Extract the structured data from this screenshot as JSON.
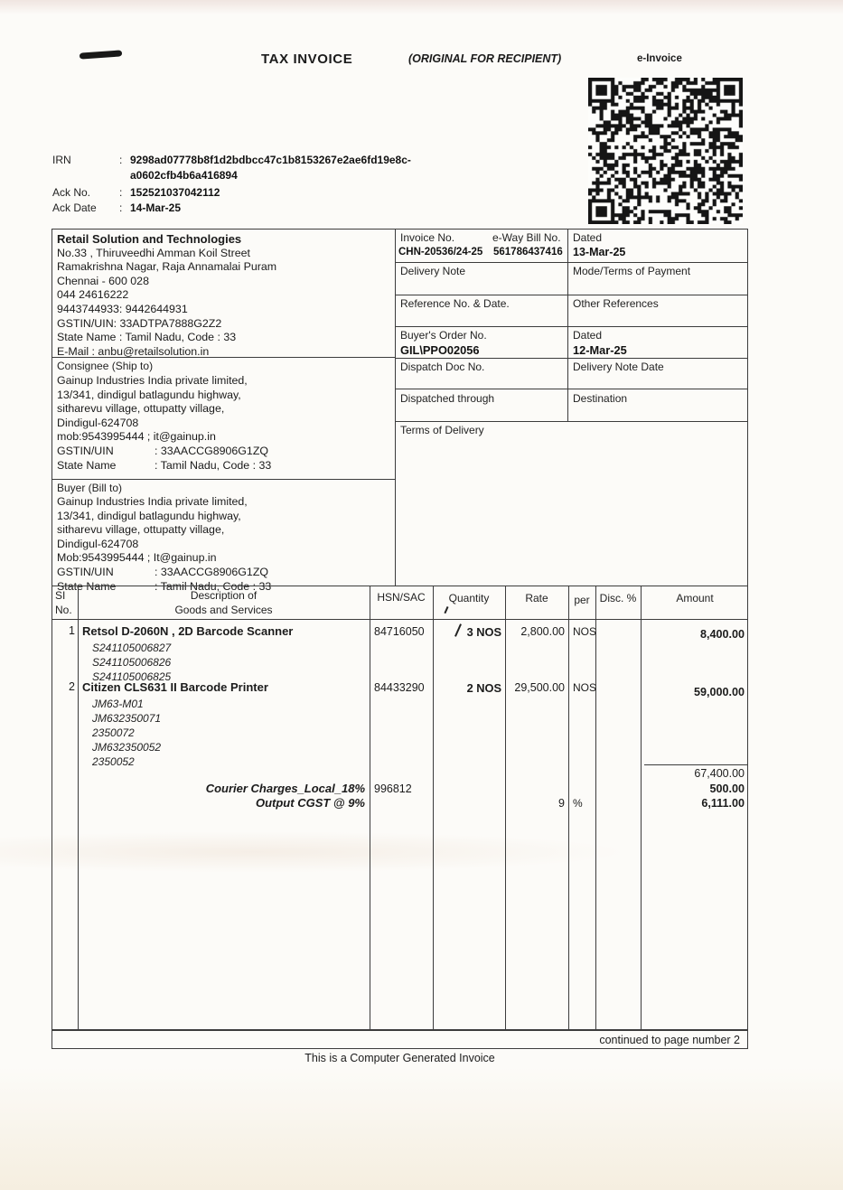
{
  "header": {
    "title": "TAX INVOICE",
    "copy_type": "(ORIGINAL FOR RECIPIENT)",
    "einvoice_label": "e-Invoice"
  },
  "irn": {
    "label": "IRN",
    "sep": ":",
    "value_line1": "9298ad07778b8f1d2bdbcc47c1b8153267e2ae6fd19e8c-",
    "value_line2": "a0602cfb4b6a416894",
    "ack_no_label": "Ack No.",
    "ack_no": "152521037042112",
    "ack_date_label": "Ack Date",
    "ack_date": "14-Mar-25"
  },
  "seller": {
    "name": "Retail Solution and Technologies",
    "lines": [
      "No.33 , Thiruveedhi Amman Koil Street",
      "Ramakrishna Nagar, Raja Annamalai Puram",
      "Chennai - 600 028",
      "044 24616222",
      "9443744933: 9442644931",
      "GSTIN/UIN: 33ADTPA7888G2Z2",
      "State Name :  Tamil Nadu, Code : 33",
      "E-Mail : anbu@retailsolution.in"
    ]
  },
  "consignee": {
    "section_label": "Consignee (Ship to)",
    "name": "Gainup Industries India private limited,",
    "address": [
      "13/341, dindigul batlagundu highway,",
      "sitharevu village, ottupatty village,",
      "Dindigul-624708"
    ],
    "contact": "mob:9543995444 ; it@gainup.in",
    "gstin_label": "GSTIN/UIN",
    "gstin": ": 33AACCG8906G1ZQ",
    "state_label": "State Name",
    "state": ": Tamil Nadu, Code : 33"
  },
  "buyer": {
    "section_label": "Buyer (Bill to)",
    "name": "Gainup Industries India private limited,",
    "address": [
      "13/341, dindigul batlagundu highway,",
      "sitharevu village, ottupatty village,",
      "Dindigul-624708"
    ],
    "contact": "Mob:9543995444 ; It@gainup.in",
    "gstin_label": "GSTIN/UIN",
    "gstin": ": 33AACCG8906G1ZQ",
    "state_label": "State Name",
    "state": ": Tamil Nadu, Code : 33"
  },
  "invoice_details": {
    "invoice_no_label": "Invoice No.",
    "invoice_no": "CHN-20536/24-25",
    "eway_bill_label": "e-Way Bill No.",
    "eway_bill_no": "561786437416",
    "dated_label": "Dated",
    "dated": "13-Mar-25",
    "delivery_note_label": "Delivery Note",
    "mode_terms_label": "Mode/Terms of Payment",
    "reference_label": "Reference No. & Date.",
    "other_refs_label": "Other References",
    "buyers_order_label": "Buyer's Order No.",
    "buyers_order_no": "GIL\\PPO02056",
    "order_dated_label": "Dated",
    "order_dated": "12-Mar-25",
    "dispatch_doc_label": "Dispatch Doc No.",
    "delivery_note_date_label": "Delivery Note Date",
    "dispatched_through_label": "Dispatched through",
    "destination_label": "Destination",
    "terms_label": "Terms of Delivery"
  },
  "table": {
    "headers": {
      "sl_line1": "SI",
      "sl_line2": "No.",
      "desc_line1": "Description of",
      "desc_line2": "Goods and Services",
      "hsn": "HSN/SAC",
      "qty": "Quantity",
      "rate": "Rate",
      "per": "per",
      "disc": "Disc. %",
      "amount": "Amount"
    },
    "items": [
      {
        "sl": "1",
        "description": "Retsol D-2060N , 2D Barcode Scanner",
        "serials": [
          "S241105006827",
          "S241105006826",
          "S241105006825"
        ],
        "hsn": "84716050",
        "quantity": "3 NOS",
        "rate": "2,800.00",
        "per": "NOS",
        "amount": "8,400.00"
      },
      {
        "sl": "2",
        "description": "Citizen CLS631 II Barcode Printer",
        "serials": [
          "JM63-M01",
          "JM632350071",
          "2350072",
          "JM632350052",
          "2350052"
        ],
        "hsn": "84433290",
        "quantity": "2 NOS",
        "rate": "29,500.00",
        "per": "NOS",
        "amount": "59,000.00"
      }
    ],
    "charges": {
      "subtotal": "67,400.00",
      "courier_label": "Courier Charges_Local_18%",
      "courier_hsn": "996812",
      "courier_amount": "500.00",
      "cgst_label": "Output CGST @ 9%",
      "cgst_rate": "9",
      "cgst_per": "%",
      "cgst_amount": "6,111.00"
    }
  },
  "footer": {
    "continued": "continued to page number  2",
    "computer_generated": "This is a Computer Generated Invoice"
  }
}
